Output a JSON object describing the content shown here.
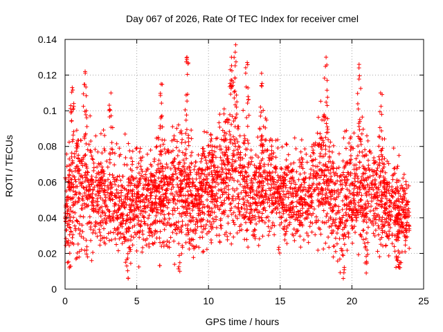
{
  "chart_data": {
    "type": "scatter",
    "title": "Day 067 of 2026, Rate Of TEC Index for receiver cmel",
    "xlabel": "GPS time / hours",
    "ylabel": "ROTI / TECUs",
    "xlim": [
      0,
      25
    ],
    "ylim": [
      0,
      0.14
    ],
    "x_ticks": [
      0,
      5,
      10,
      15,
      20,
      25
    ],
    "x_tick_labels": [
      "0",
      "5",
      "10",
      "15",
      "20",
      "25"
    ],
    "y_ticks": [
      0,
      0.02,
      0.04,
      0.06,
      0.08,
      0.1,
      0.12,
      0.14
    ],
    "y_tick_labels": [
      "0",
      "0.02",
      "0.04",
      "0.06",
      "0.08",
      "0.1",
      "0.12",
      "0.14"
    ],
    "grid": true,
    "marker": "plus",
    "color": "#ff0000",
    "x_range_of_data": [
      0,
      24
    ],
    "typical_range": [
      0.02,
      0.09
    ],
    "envelope": {
      "x": [
        0,
        1,
        2,
        3,
        4,
        5,
        6,
        7,
        8,
        9,
        10,
        11,
        12,
        13,
        14,
        15,
        16,
        17,
        18,
        19,
        20,
        21,
        22,
        23,
        24
      ],
      "low": [
        0.015,
        0.012,
        0.015,
        0.015,
        0.008,
        0.012,
        0.015,
        0.012,
        0.015,
        0.015,
        0.015,
        0.018,
        0.015,
        0.015,
        0.025,
        0.02,
        0.02,
        0.018,
        0.015,
        0.008,
        0.012,
        0.015,
        0.015,
        0.012,
        0.015
      ],
      "high": [
        0.1,
        0.12,
        0.105,
        0.1,
        0.095,
        0.1,
        0.1,
        0.11,
        0.125,
        0.1,
        0.11,
        0.125,
        0.135,
        0.1,
        0.12,
        0.1,
        0.1,
        0.1,
        0.13,
        0.09,
        0.12,
        0.11,
        0.1,
        0.09,
        0.08
      ]
    },
    "peaks": [
      {
        "x": 0.5,
        "y": 0.113
      },
      {
        "x": 1.4,
        "y": 0.122
      },
      {
        "x": 3.2,
        "y": 0.11
      },
      {
        "x": 6.7,
        "y": 0.115
      },
      {
        "x": 8.5,
        "y": 0.13
      },
      {
        "x": 11.6,
        "y": 0.13
      },
      {
        "x": 11.9,
        "y": 0.137
      },
      {
        "x": 12.7,
        "y": 0.127
      },
      {
        "x": 13.7,
        "y": 0.121
      },
      {
        "x": 18.2,
        "y": 0.13
      },
      {
        "x": 20.5,
        "y": 0.126
      },
      {
        "x": 22.0,
        "y": 0.11
      }
    ],
    "troughs": [
      {
        "x": 0.3,
        "y": 0.012
      },
      {
        "x": 4.4,
        "y": 0.006
      },
      {
        "x": 8.0,
        "y": 0.01
      },
      {
        "x": 19.4,
        "y": 0.006
      },
      {
        "x": 21.0,
        "y": 0.009
      },
      {
        "x": 23.3,
        "y": 0.012
      }
    ]
  }
}
